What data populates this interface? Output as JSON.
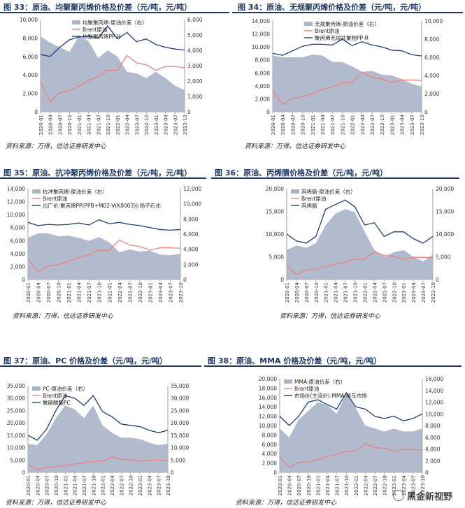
{
  "watermark": "黑金新视野",
  "chart_data": [
    {
      "type": "line",
      "title": "图 33：原油、均聚聚丙烯价格及价差（元/吨，元/吨）",
      "source": "资料来源：万得，信达证券研发中心",
      "x": [
        "2020-01",
        "2020-04",
        "2020-07",
        "2020-10",
        "2021-01",
        "2021-04",
        "2021-07",
        "2021-10",
        "2022-01",
        "2022-04",
        "2022-07",
        "2022-10",
        "2023-01",
        "2023-04",
        "2023-07",
        "2023-10"
      ],
      "ylim_left": [
        0,
        10000
      ],
      "yticks_left": [
        0,
        2000,
        4000,
        6000,
        8000,
        10000
      ],
      "ylim_right": [
        0,
        6000
      ],
      "yticks_right": [
        0,
        1000,
        2000,
        3000,
        4000,
        5000,
        6000
      ],
      "legend": "top-center",
      "series": [
        {
          "name": "均聚聚丙烯-原油价差（右）",
          "kind": "area",
          "axis": "right",
          "color": "#aab4c8",
          "values": [
            4900,
            4500,
            4200,
            3900,
            4900,
            4600,
            3500,
            4000,
            3600,
            2600,
            2500,
            2200,
            2600,
            2200,
            1700,
            1400
          ]
        },
        {
          "name": "Brent原油",
          "kind": "line",
          "axis": "left",
          "color": "#ef7f7f",
          "values": [
            3200,
            1100,
            2100,
            2300,
            2800,
            3400,
            3800,
            4500,
            4500,
            6100,
            5300,
            5100,
            4500,
            4900,
            4900,
            4800
          ]
        },
        {
          "name": "均聚聚丙烯PP-H",
          "kind": "line",
          "axis": "left",
          "color": "#1f3c7a",
          "values": [
            6200,
            6000,
            7000,
            7800,
            8100,
            8200,
            8000,
            9300,
            7900,
            8600,
            7600,
            7900,
            7300,
            7000,
            6800,
            6700
          ]
        }
      ]
    },
    {
      "type": "line",
      "title": "图 34：原油、无规聚丙烯价格及价差（元/吨，元/吨）",
      "source": "资料来源：万得，信达证券研发中心",
      "x": [
        "2020-01",
        "2020-04",
        "2020-07",
        "2020-10",
        "2021-01",
        "2021-04",
        "2021-07",
        "2021-10",
        "2022-01",
        "2022-04",
        "2022-07",
        "2022-10",
        "2023-01",
        "2023-04",
        "2023-07",
        "2023-10"
      ],
      "ylim_left": [
        0,
        14000
      ],
      "yticks_left": [
        0,
        2000,
        4000,
        6000,
        8000,
        10000,
        12000,
        14000
      ],
      "ylim_right": [
        0,
        10000
      ],
      "yticks_right": [
        0,
        2000,
        4000,
        6000,
        8000,
        10000
      ],
      "legend": "top-center",
      "series": [
        {
          "name": "无规聚丙烯-原油价差（右）",
          "kind": "area",
          "axis": "right",
          "color": "#aab4c8",
          "values": [
            6200,
            6000,
            6000,
            6000,
            6300,
            6200,
            5500,
            5500,
            5000,
            4400,
            4500,
            4100,
            4000,
            3600,
            3100,
            2800
          ]
        },
        {
          "name": "Brent原油",
          "kind": "line",
          "axis": "left",
          "color": "#ef7f7f",
          "values": [
            3200,
            1100,
            2100,
            2300,
            2800,
            3400,
            3800,
            4500,
            4500,
            6100,
            5300,
            5100,
            4500,
            4900,
            4900,
            4800
          ]
        },
        {
          "name": "聚丙烯无规共聚物PP-R",
          "kind": "line",
          "axis": "left",
          "color": "#1f3c7a",
          "values": [
            9000,
            8700,
            9400,
            10100,
            10400,
            10400,
            10300,
            11200,
            10200,
            10800,
            10300,
            10000,
            9500,
            9400,
            8800,
            8600
          ]
        }
      ]
    },
    {
      "type": "line",
      "title": "图 35：原油、抗冲聚丙烯价格及价差（元/吨，元/吨）",
      "source": "资料来源：万得，信达证券研发中心",
      "x": [
        "2020-01",
        "2020-04",
        "2020-07",
        "2020-10",
        "2021-01",
        "2021-04",
        "2021-07",
        "2021-10",
        "2022-01",
        "2022-04",
        "2022-07",
        "2022-10",
        "2023-01",
        "2023-04",
        "2023-07",
        "2023-10"
      ],
      "ylim_left": [
        0,
        14000
      ],
      "yticks_left": [
        0,
        2000,
        4000,
        6000,
        8000,
        10000,
        12000,
        14000
      ],
      "ylim_right": [
        0,
        12000
      ],
      "yticks_right": [
        0,
        2000,
        4000,
        6000,
        8000,
        10000,
        12000
      ],
      "legend": "top-left",
      "series": [
        {
          "name": "抗冲聚丙烯-原油价差（右）",
          "kind": "area",
          "axis": "right",
          "color": "#aab4c8",
          "values": [
            5500,
            6100,
            6100,
            5700,
            5800,
            5500,
            5100,
            5600,
            4900,
            3600,
            4000,
            3700,
            3800,
            3300,
            3200,
            3400
          ]
        },
        {
          "name": "Brent原油",
          "kind": "line",
          "axis": "left",
          "color": "#ef7f7f",
          "values": [
            3200,
            1100,
            2100,
            2300,
            2800,
            3400,
            3800,
            4500,
            4500,
            6100,
            5300,
            5100,
            4500,
            4900,
            4900,
            4800
          ]
        },
        {
          "name": "出厂价:聚丙烯PP(PPB+M02-V(K8003)):扬子石化",
          "kind": "line",
          "axis": "left",
          "color": "#1f3c7a",
          "values": [
            8800,
            8300,
            8500,
            8400,
            8500,
            8700,
            8400,
            9200,
            8600,
            8800,
            8500,
            8300,
            8000,
            7700,
            7600,
            7700
          ]
        }
      ]
    },
    {
      "type": "line",
      "title": "图 36：原油、丙烯腈价格及价差（元/吨，元/吨）",
      "source": "资料来源：万得，信达证券研发中心",
      "x": [
        "2020-01",
        "2020-04",
        "2020-07",
        "2020-10",
        "2021-01",
        "2021-04",
        "2021-07",
        "2021-10",
        "2022-01",
        "2022-04",
        "2022-07",
        "2022-10",
        "2023-01",
        "2023-04",
        "2023-07",
        "2023-10"
      ],
      "ylim_left": [
        0,
        20000
      ],
      "yticks_left": [
        0,
        5000,
        10000,
        15000,
        20000
      ],
      "ylim_right": [
        0,
        20000
      ],
      "yticks_right": [
        0,
        5000,
        10000,
        15000,
        20000
      ],
      "legend": "top-left",
      "series": [
        {
          "name": "丙烯腈-原油价差（右）",
          "kind": "area",
          "axis": "right",
          "color": "#aab4c8",
          "values": [
            6500,
            7500,
            7000,
            8000,
            12000,
            14500,
            15500,
            14800,
            10500,
            6500,
            5000,
            6000,
            6500,
            5000,
            4000,
            5500
          ]
        },
        {
          "name": "Brent原油",
          "kind": "line",
          "axis": "left",
          "color": "#ef7f7f",
          "values": [
            3200,
            1100,
            2100,
            2300,
            2800,
            3400,
            3800,
            4500,
            4500,
            6100,
            5300,
            5100,
            4500,
            4900,
            4900,
            4800
          ]
        },
        {
          "name": "丙烯腈",
          "kind": "line",
          "axis": "left",
          "color": "#1f3c7a",
          "values": [
            10000,
            8500,
            8000,
            9500,
            15500,
            16500,
            17500,
            16000,
            12000,
            12500,
            9500,
            10500,
            10500,
            9000,
            8000,
            9500
          ]
        }
      ]
    },
    {
      "type": "line",
      "title": "图 37：原油、PC 价格及价差（元/吨，元/吨）",
      "source": "资料来源：万得，信达证券研发中心",
      "x": [
        "2020-01",
        "2020-04",
        "2020-07",
        "2020-10",
        "2021-01",
        "2021-04",
        "2021-07",
        "2021-10",
        "2022-01",
        "2022-04",
        "2022-07",
        "2022-10",
        "2023-01",
        "2023-04",
        "2023-07",
        "2023-10"
      ],
      "ylim_left": [
        0,
        35000
      ],
      "yticks_left": [
        0,
        5000,
        10000,
        15000,
        20000,
        25000,
        30000,
        35000
      ],
      "ylim_right": [
        0,
        35000
      ],
      "yticks_right": [
        0,
        5000,
        10000,
        15000,
        20000,
        25000,
        30000,
        35000
      ],
      "legend": "top-left",
      "series": [
        {
          "name": "PC-原油价差（右）",
          "kind": "area",
          "axis": "right",
          "color": "#aab4c8",
          "values": [
            11500,
            11000,
            15500,
            22000,
            27000,
            25500,
            22000,
            27000,
            19000,
            16000,
            14000,
            14000,
            13500,
            12000,
            11000,
            11500
          ]
        },
        {
          "name": "Brent原油",
          "kind": "line",
          "axis": "left",
          "color": "#ef7f7f",
          "values": [
            3200,
            1100,
            2100,
            2300,
            2800,
            3400,
            3800,
            4500,
            4500,
            6100,
            5300,
            5100,
            4500,
            4900,
            4900,
            4800
          ]
        },
        {
          "name": "聚碳酸酯PC",
          "kind": "line",
          "axis": "left",
          "color": "#1f3c7a",
          "values": [
            15000,
            13000,
            17500,
            25000,
            31000,
            30000,
            27000,
            31000,
            24500,
            22500,
            19500,
            19000,
            18500,
            17000,
            16000,
            17000
          ]
        }
      ]
    },
    {
      "type": "line",
      "title": "图 38：原油、MMA 价格及价差（元/吨，元/吨）",
      "source": "资料来源：万得，信达证券研发中心",
      "x": [
        "2020-01",
        "2020-04",
        "2020-07",
        "2020-10",
        "2021-01",
        "2021-04",
        "2021-07",
        "2021-10",
        "2022-01",
        "2022-04",
        "2022-07",
        "2022-10",
        "2023-01",
        "2023-04",
        "2023-07",
        "2023-10"
      ],
      "ylim_left": [
        0,
        20000
      ],
      "yticks_left": [
        0,
        2000,
        4000,
        6000,
        8000,
        10000,
        12000,
        14000,
        16000,
        18000,
        20000
      ],
      "ylim_right": [
        0,
        16000
      ],
      "yticks_right": [
        0,
        2000,
        4000,
        6000,
        8000,
        10000,
        12000,
        14000,
        16000
      ],
      "legend": "top-left",
      "series": [
        {
          "name": "MMA-原油价差（右）",
          "kind": "area",
          "axis": "right",
          "color": "#aab4c8",
          "values": [
            7500,
            6000,
            9000,
            10500,
            12000,
            11500,
            10000,
            13500,
            11000,
            8000,
            7500,
            7000,
            7500,
            7000,
            7000,
            7500
          ]
        },
        {
          "name": "Brent原油",
          "kind": "line",
          "axis": "left",
          "color": "#ef7f7f",
          "values": [
            3200,
            1100,
            2100,
            2300,
            2800,
            3400,
            3800,
            4500,
            4500,
            6100,
            5300,
            5100,
            4500,
            4900,
            4900,
            4800
          ]
        },
        {
          "name": "市场价(主流价):MMA:华东市场",
          "kind": "line",
          "axis": "left",
          "color": "#1f3c7a",
          "values": [
            12000,
            10000,
            12000,
            15000,
            15500,
            14500,
            13500,
            17000,
            14000,
            13500,
            12000,
            11500,
            12000,
            11000,
            11500,
            12500
          ]
        }
      ]
    }
  ]
}
